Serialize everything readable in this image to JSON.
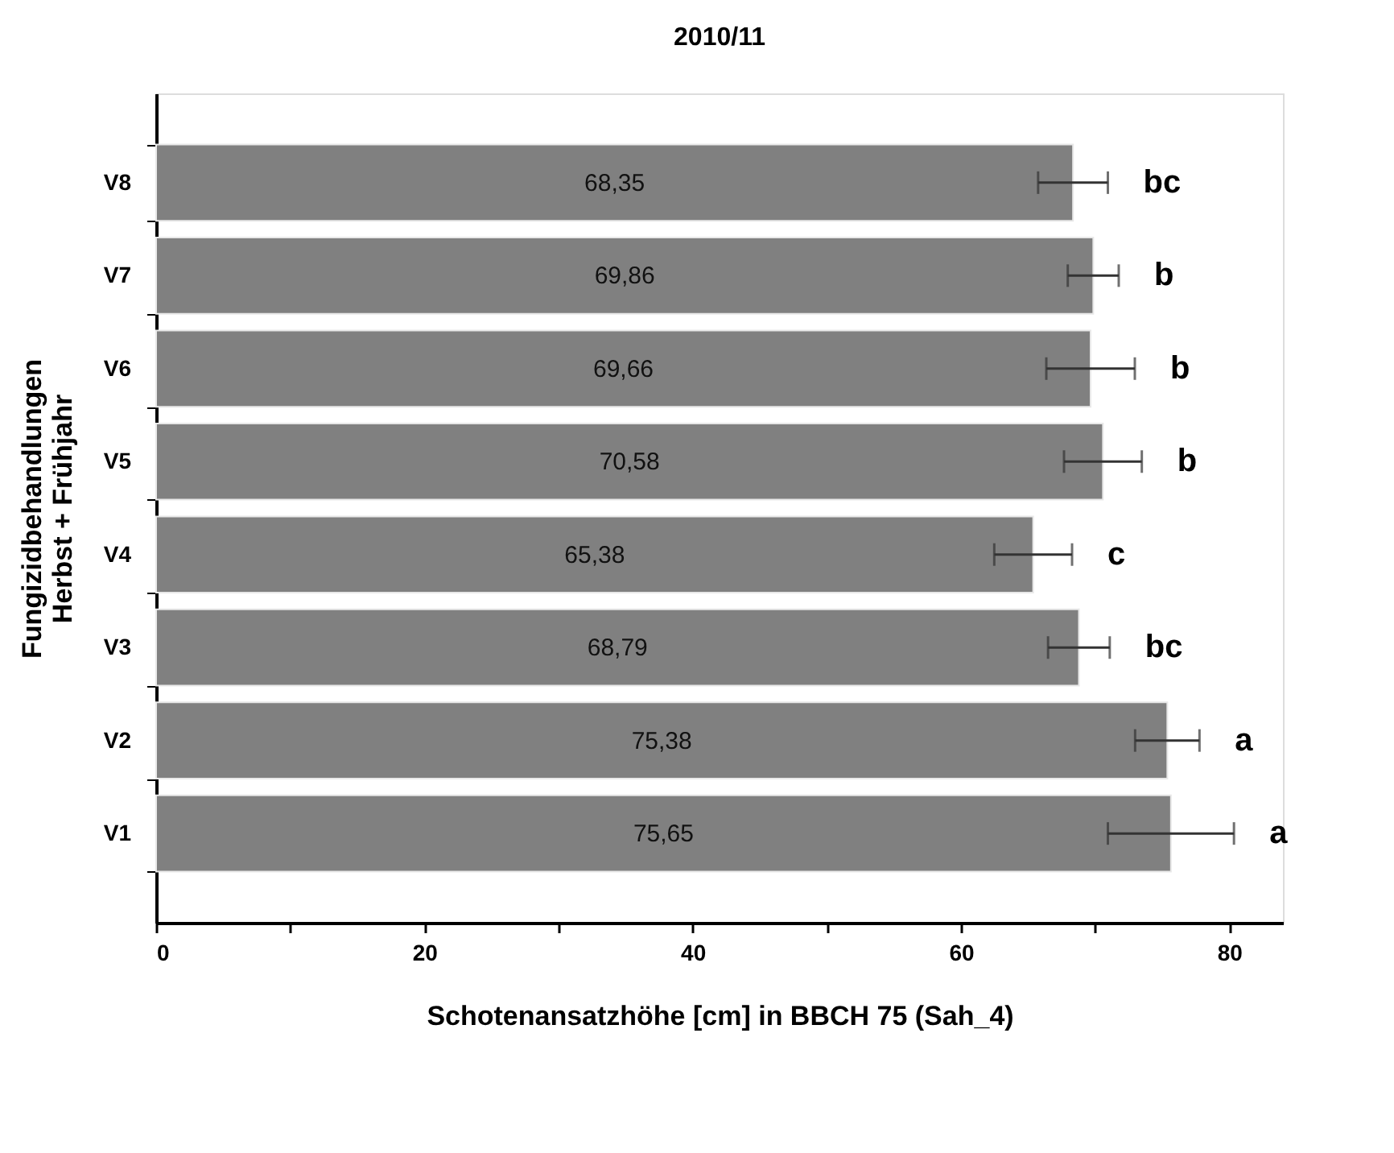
{
  "chart_data": {
    "type": "bar",
    "orientation": "horizontal",
    "title": "2010/11",
    "xlabel": "Schotenansatzhöhe [cm] in BBCH 75 (Sah_4)",
    "ylabel": "Fungizidbehandlungen\nHerbst + Frühjahr",
    "categories": [
      "V8",
      "V7",
      "V6",
      "V5",
      "V4",
      "V3",
      "V2",
      "V1"
    ],
    "values": [
      68.35,
      69.86,
      69.66,
      70.58,
      65.38,
      68.79,
      75.38,
      75.65
    ],
    "value_labels": [
      "68,35",
      "69,86",
      "69,66",
      "70,58",
      "65,38",
      "68,79",
      "75,38",
      "75,65"
    ],
    "errors": [
      2.6,
      1.9,
      3.3,
      2.9,
      2.9,
      2.3,
      2.4,
      4.7
    ],
    "color": "#808080",
    "xlim": [
      0,
      84
    ],
    "xticks": [
      0,
      {
        "value": 10,
        "label": null
      },
      20,
      {
        "value": 30,
        "label": null
      },
      40,
      {
        "value": 50,
        "label": null
      },
      60,
      {
        "value": 70,
        "label": null
      },
      80
    ],
    "annotations": [
      "bc",
      "b",
      "b",
      "b",
      "c",
      "bc",
      "a",
      "a"
    ],
    "grid": false
  }
}
